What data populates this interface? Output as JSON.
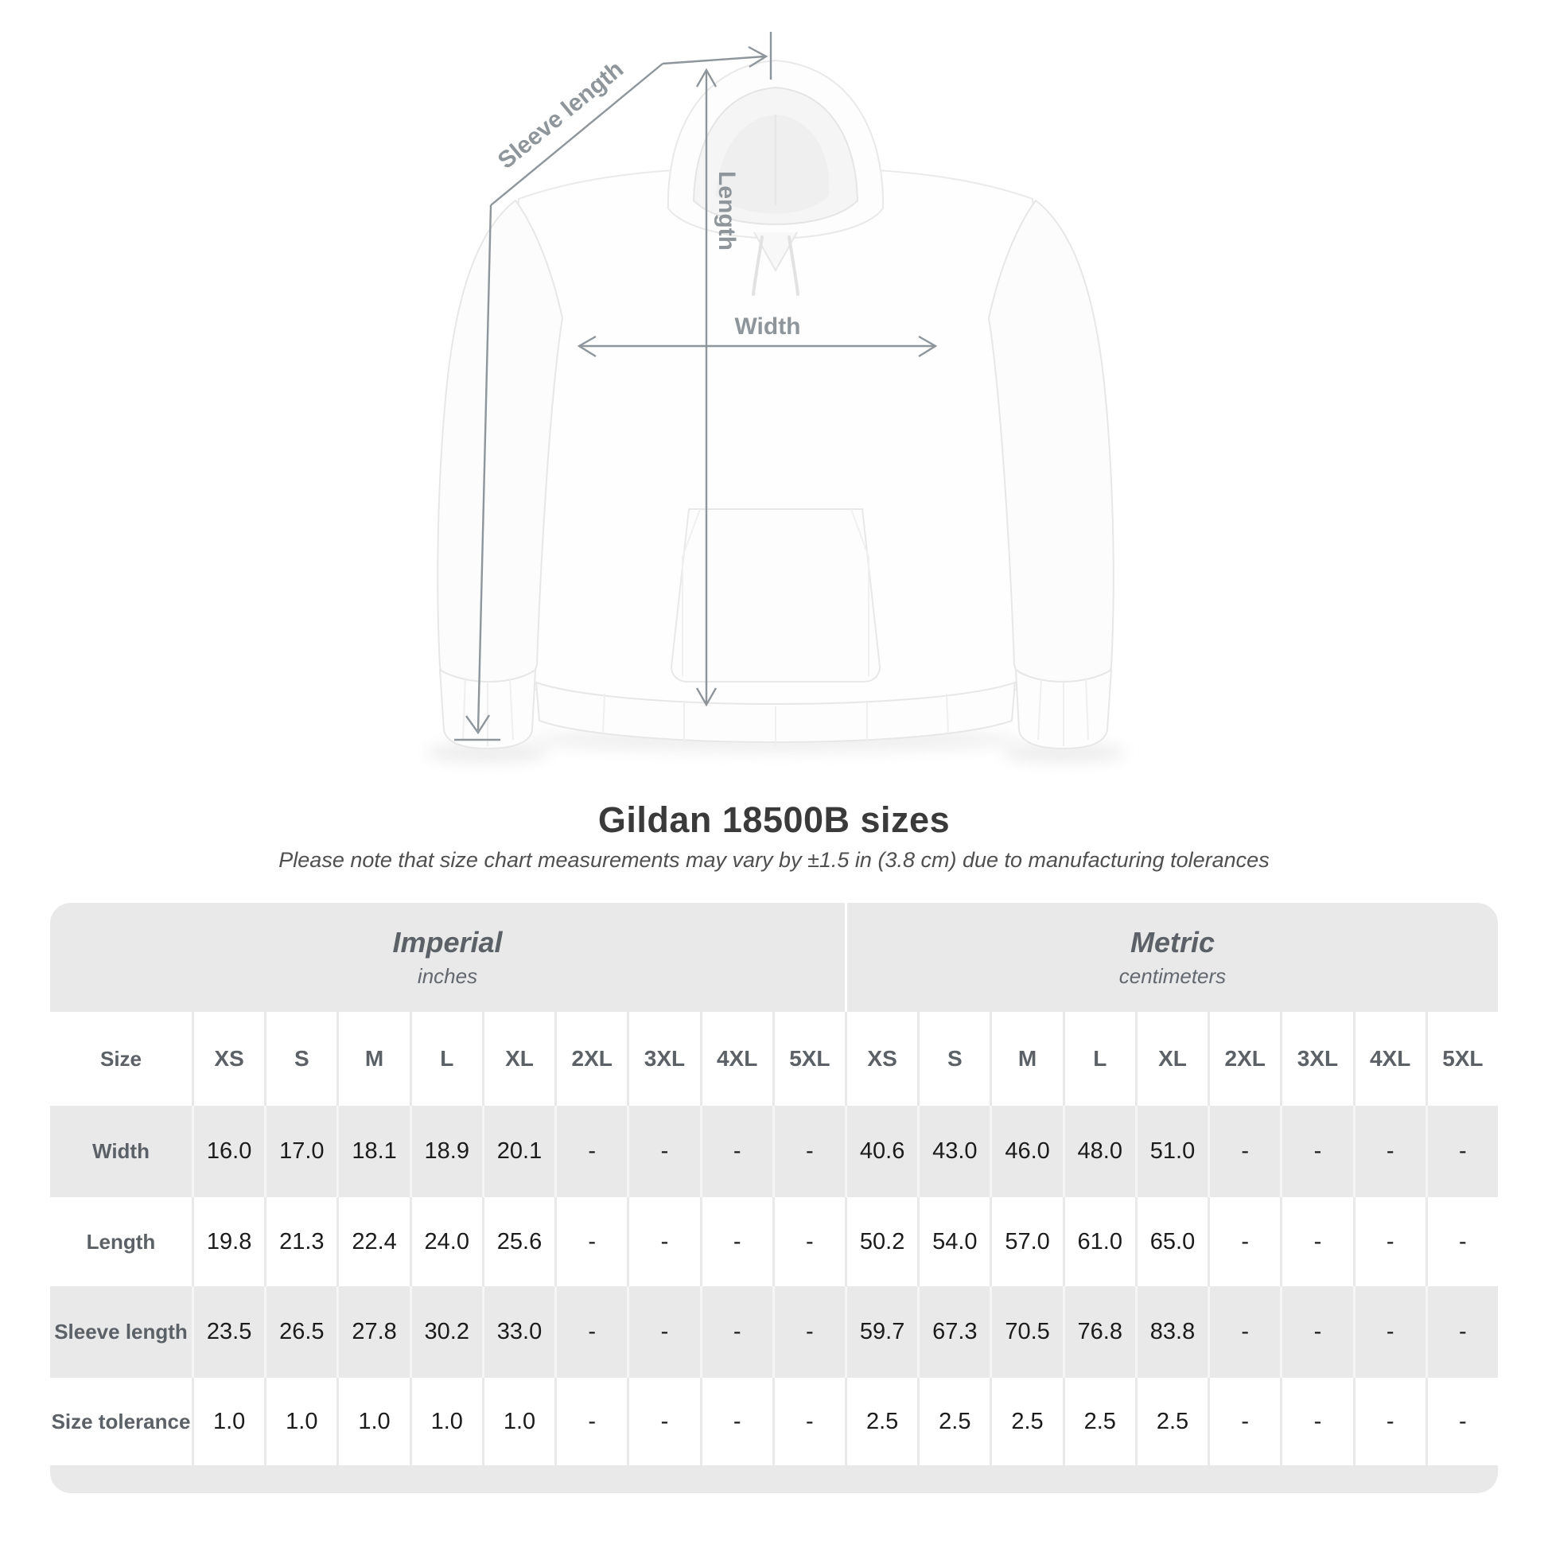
{
  "diagram": {
    "sleeve_length_label": "Sleeve length",
    "length_label": "Length",
    "width_label": "Width"
  },
  "title": "Gildan 18500B sizes",
  "subtitle": "Please note that size chart measurements may vary by ±1.5 in (3.8 cm) due to manufacturing tolerances",
  "table": {
    "unit_groups": [
      {
        "label": "Imperial",
        "sublabel": "inches"
      },
      {
        "label": "Metric",
        "sublabel": "centimeters"
      }
    ],
    "size_row_label": "Size",
    "sizes": [
      "XS",
      "S",
      "M",
      "L",
      "XL",
      "2XL",
      "3XL",
      "4XL",
      "5XL"
    ],
    "rows": [
      {
        "label": "Width",
        "imperial": [
          "16.0",
          "17.0",
          "18.1",
          "18.9",
          "20.1",
          "-",
          "-",
          "-",
          "-"
        ],
        "metric": [
          "40.6",
          "43.0",
          "46.0",
          "48.0",
          "51.0",
          "-",
          "-",
          "-",
          "-"
        ]
      },
      {
        "label": "Length",
        "imperial": [
          "19.8",
          "21.3",
          "22.4",
          "24.0",
          "25.6",
          "-",
          "-",
          "-",
          "-"
        ],
        "metric": [
          "50.2",
          "54.0",
          "57.0",
          "61.0",
          "65.0",
          "-",
          "-",
          "-",
          "-"
        ]
      },
      {
        "label": "Sleeve length",
        "imperial": [
          "23.5",
          "26.5",
          "27.8",
          "30.2",
          "33.0",
          "-",
          "-",
          "-",
          "-"
        ],
        "metric": [
          "59.7",
          "67.3",
          "70.5",
          "76.8",
          "83.8",
          "-",
          "-",
          "-",
          "-"
        ]
      },
      {
        "label": "Size tolerance",
        "imperial": [
          "1.0",
          "1.0",
          "1.0",
          "1.0",
          "1.0",
          "-",
          "-",
          "-",
          "-"
        ],
        "metric": [
          "2.5",
          "2.5",
          "2.5",
          "2.5",
          "2.5",
          "-",
          "-",
          "-",
          "-"
        ]
      }
    ]
  },
  "colors": {
    "table_gray": "#e9e9e9",
    "annotation_gray": "#8e959b",
    "title_text": "#3a3a3a",
    "value_text": "#1b1b1b",
    "header_text": "#5b6166"
  }
}
